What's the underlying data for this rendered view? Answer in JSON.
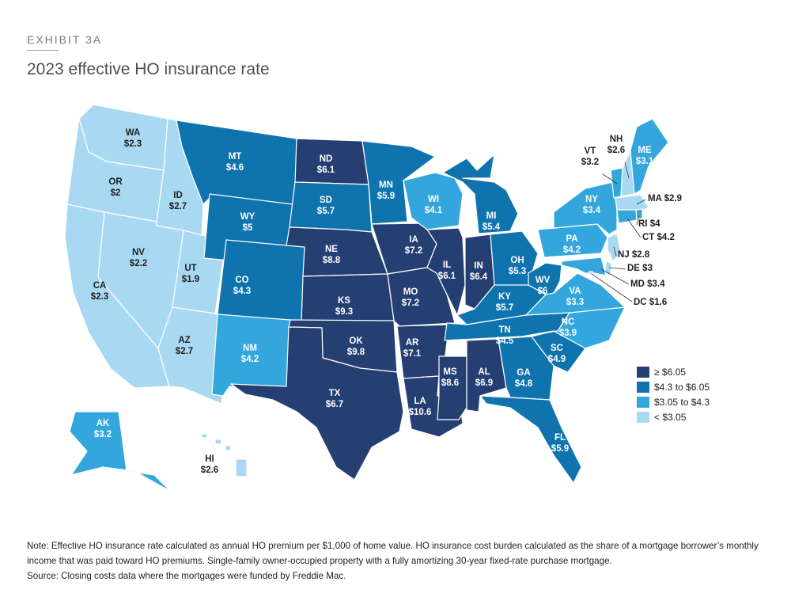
{
  "header": {
    "exhibit": "EXHIBIT 3A",
    "title": "2023 effective HO insurance rate"
  },
  "legend": {
    "items": [
      {
        "label": "≥ $6.05",
        "color": "#263f73"
      },
      {
        "label": "$4.3 to $6.05",
        "color": "#0f73ae"
      },
      {
        "label": "$3.05 to $4.3",
        "color": "#33a6dd"
      },
      {
        "label": "< $3.05",
        "color": "#a9d9f2"
      }
    ]
  },
  "states": [
    {
      "abbr": "WA",
      "value": "$2.3",
      "tier": 3
    },
    {
      "abbr": "OR",
      "value": "$2",
      "tier": 3
    },
    {
      "abbr": "CA",
      "value": "$2.3",
      "tier": 3
    },
    {
      "abbr": "ID",
      "value": "$2.7",
      "tier": 3
    },
    {
      "abbr": "NV",
      "value": "$2.2",
      "tier": 3
    },
    {
      "abbr": "UT",
      "value": "$1.9",
      "tier": 3
    },
    {
      "abbr": "AZ",
      "value": "$2.7",
      "tier": 3
    },
    {
      "abbr": "MT",
      "value": "$4.6",
      "tier": 1
    },
    {
      "abbr": "WY",
      "value": "$5",
      "tier": 1
    },
    {
      "abbr": "CO",
      "value": "$4.3",
      "tier": 1
    },
    {
      "abbr": "NM",
      "value": "$4.2",
      "tier": 2
    },
    {
      "abbr": "ND",
      "value": "$6.1",
      "tier": 0
    },
    {
      "abbr": "SD",
      "value": "$5.7",
      "tier": 1
    },
    {
      "abbr": "NE",
      "value": "$8.8",
      "tier": 0
    },
    {
      "abbr": "KS",
      "value": "$9.3",
      "tier": 0
    },
    {
      "abbr": "OK",
      "value": "$9.8",
      "tier": 0
    },
    {
      "abbr": "TX",
      "value": "$6.7",
      "tier": 0
    },
    {
      "abbr": "MN",
      "value": "$5.9",
      "tier": 1
    },
    {
      "abbr": "IA",
      "value": "$7.2",
      "tier": 0
    },
    {
      "abbr": "MO",
      "value": "$7.2",
      "tier": 0
    },
    {
      "abbr": "AR",
      "value": "$7.1",
      "tier": 0
    },
    {
      "abbr": "LA",
      "value": "$10.6",
      "tier": 0
    },
    {
      "abbr": "WI",
      "value": "$4.1",
      "tier": 2
    },
    {
      "abbr": "IL",
      "value": "$6.1",
      "tier": 0
    },
    {
      "abbr": "MS",
      "value": "$8.6",
      "tier": 0
    },
    {
      "abbr": "MI",
      "value": "$5.4",
      "tier": 1
    },
    {
      "abbr": "IN",
      "value": "$6.4",
      "tier": 0
    },
    {
      "abbr": "OH",
      "value": "$5.3",
      "tier": 1
    },
    {
      "abbr": "KY",
      "value": "$5.7",
      "tier": 1
    },
    {
      "abbr": "TN",
      "value": "$4.5",
      "tier": 1
    },
    {
      "abbr": "AL",
      "value": "$6.9",
      "tier": 0
    },
    {
      "abbr": "GA",
      "value": "$4.8",
      "tier": 1
    },
    {
      "abbr": "FL",
      "value": "$5.9",
      "tier": 1
    },
    {
      "abbr": "SC",
      "value": "$4.9",
      "tier": 1
    },
    {
      "abbr": "NC",
      "value": "$3.9",
      "tier": 2
    },
    {
      "abbr": "VA",
      "value": "$3.3",
      "tier": 2
    },
    {
      "abbr": "WV",
      "value": "$6",
      "tier": 1
    },
    {
      "abbr": "PA",
      "value": "$4.2",
      "tier": 2
    },
    {
      "abbr": "NY",
      "value": "$3.4",
      "tier": 2
    },
    {
      "abbr": "VT",
      "value": "$3.2",
      "tier": 2
    },
    {
      "abbr": "NH",
      "value": "$2.6",
      "tier": 3
    },
    {
      "abbr": "ME",
      "value": "$3.1",
      "tier": 2
    },
    {
      "abbr": "MA",
      "value": "$2.9",
      "tier": 3
    },
    {
      "abbr": "RI",
      "value": "$4",
      "tier": 2
    },
    {
      "abbr": "CT",
      "value": "$4.2",
      "tier": 2
    },
    {
      "abbr": "NJ",
      "value": "$2.8",
      "tier": 3
    },
    {
      "abbr": "DE",
      "value": "$3",
      "tier": 3
    },
    {
      "abbr": "MD",
      "value": "$3.4",
      "tier": 2
    },
    {
      "abbr": "DC",
      "value": "$1.6",
      "tier": 3
    },
    {
      "abbr": "AK",
      "value": "$3.2",
      "tier": 2
    },
    {
      "abbr": "HI",
      "value": "$2.6",
      "tier": 3
    }
  ],
  "notes": {
    "note": "Note: Effective HO insurance rate calculated as annual HO premium per $1,000 of home value. HO insurance cost burden calculated as the share of a mortgage borrower’s monthly income that was paid toward HO premiums. Single-family owner-occupied property with a fully amortizing 30-year fixed-rate purchase mortgage.",
    "source": "Source: Closing costs data where the mortgages were funded by Freddie Mac."
  }
}
